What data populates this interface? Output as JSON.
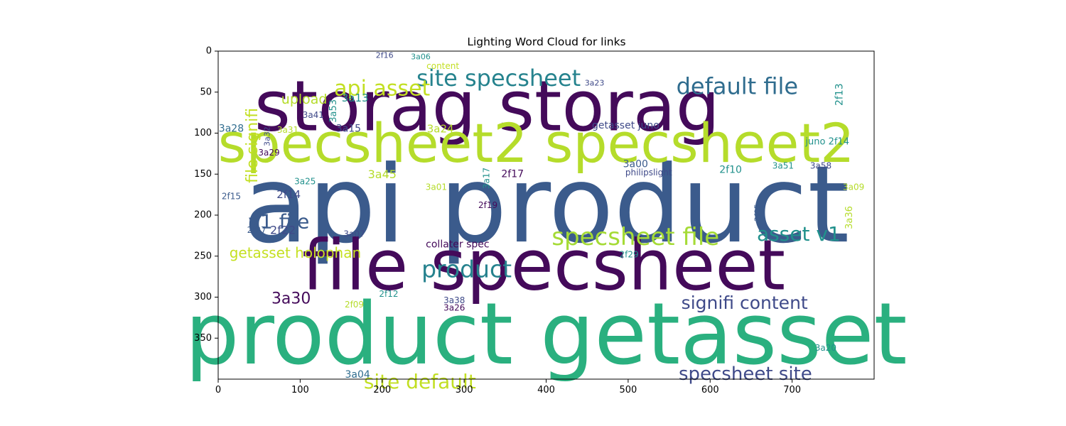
{
  "chart_data": {
    "type": "wordcloud",
    "title": "Lighting Word Cloud for links",
    "xlim": [
      0,
      800
    ],
    "ylim": [
      400,
      0
    ],
    "xticks": [
      0,
      100,
      200,
      300,
      400,
      500,
      600,
      700
    ],
    "yticks": [
      0,
      50,
      100,
      150,
      200,
      250,
      300,
      350
    ],
    "grid": false,
    "words": [
      {
        "text": "api product",
        "x": 400,
        "y": 188,
        "size": 150,
        "color": "#3b5b8c",
        "orient": "h"
      },
      {
        "text": "product getasset",
        "x": 400,
        "y": 346,
        "size": 120,
        "color": "#2ab07f",
        "orient": "h"
      },
      {
        "text": "file specsheet",
        "x": 397,
        "y": 262,
        "size": 98,
        "color": "#440a5a",
        "orient": "h"
      },
      {
        "text": "storag storag",
        "x": 328,
        "y": 68,
        "size": 98,
        "color": "#440a5a",
        "orient": "h"
      },
      {
        "text": "specsheet2 specsheet2",
        "x": 388,
        "y": 112,
        "size": 76,
        "color": "#b5dc2b",
        "orient": "h"
      },
      {
        "text": "site specsheet",
        "x": 342,
        "y": 33,
        "size": 32,
        "color": "#26838e",
        "orient": "h"
      },
      {
        "text": "default file",
        "x": 633,
        "y": 43,
        "size": 32,
        "color": "#2f6c8e",
        "orient": "h"
      },
      {
        "text": "api asset",
        "x": 200,
        "y": 46,
        "size": 30,
        "color": "#c2df23",
        "orient": "h"
      },
      {
        "text": "specsheet file",
        "x": 509,
        "y": 227,
        "size": 34,
        "color": "#a5db36",
        "orient": "h"
      },
      {
        "text": "product",
        "x": 303,
        "y": 266,
        "size": 33,
        "color": "#26828e",
        "orient": "h"
      },
      {
        "text": "v1 file",
        "x": 74,
        "y": 208,
        "size": 28,
        "color": "#3b5b8c",
        "orient": "h"
      },
      {
        "text": "asset v1",
        "x": 708,
        "y": 223,
        "size": 28,
        "color": "#21918c",
        "orient": "h"
      },
      {
        "text": "signifi content",
        "x": 642,
        "y": 307,
        "size": 25,
        "color": "#3f4a89",
        "orient": "h"
      },
      {
        "text": "specsheet site",
        "x": 643,
        "y": 394,
        "size": 26,
        "color": "#3f4a89",
        "orient": "h"
      },
      {
        "text": "site default",
        "x": 246,
        "y": 403,
        "size": 28,
        "color": "#c2df23",
        "orient": "h"
      },
      {
        "text": "getasset holophan",
        "x": 94,
        "y": 246,
        "size": 20,
        "color": "#c5e021",
        "orient": "h"
      },
      {
        "text": "3a30",
        "x": 89,
        "y": 302,
        "size": 22,
        "color": "#440a5a",
        "orient": "h"
      },
      {
        "text": "file signifi",
        "x": 42,
        "y": 115,
        "size": 22,
        "color": "#c2df23",
        "orient": "v"
      },
      {
        "text": "upload",
        "x": 105,
        "y": 59,
        "size": 19,
        "color": "#b5dc2b",
        "orient": "h"
      },
      {
        "text": "3a13",
        "x": 167,
        "y": 57,
        "size": 15,
        "color": "#21918c",
        "orient": "h"
      },
      {
        "text": "3a53",
        "x": 141,
        "y": 73,
        "size": 13,
        "color": "#21918c",
        "orient": "v"
      },
      {
        "text": "3a41",
        "x": 116,
        "y": 78,
        "size": 12,
        "color": "#3f4a89",
        "orient": "h"
      },
      {
        "text": "3a28",
        "x": 16,
        "y": 95,
        "size": 14,
        "color": "#2f6c8e",
        "orient": "h"
      },
      {
        "text": "3a31",
        "x": 85,
        "y": 96,
        "size": 12,
        "color": "#b5dc2b",
        "orient": "h"
      },
      {
        "text": "3a32",
        "x": 60,
        "y": 104,
        "size": 11,
        "color": "#3f4a89",
        "orient": "v"
      },
      {
        "text": "3a15",
        "x": 159,
        "y": 95,
        "size": 14,
        "color": "#3f4a89",
        "orient": "h"
      },
      {
        "text": "3a24",
        "x": 271,
        "y": 95,
        "size": 15,
        "color": "#b5dc2b",
        "orient": "h"
      },
      {
        "text": "3a29",
        "x": 62,
        "y": 124,
        "size": 12,
        "color": "#440a5a",
        "orient": "h"
      },
      {
        "text": "2f16",
        "x": 203,
        "y": 5,
        "size": 11,
        "color": "#3f4a89",
        "orient": "h"
      },
      {
        "text": "3a06",
        "x": 247,
        "y": 7,
        "size": 11,
        "color": "#21918c",
        "orient": "h"
      },
      {
        "text": "content",
        "x": 274,
        "y": 18,
        "size": 12,
        "color": "#c2df23",
        "orient": "h"
      },
      {
        "text": "3a23",
        "x": 459,
        "y": 39,
        "size": 11,
        "color": "#3f4a89",
        "orient": "h"
      },
      {
        "text": "2f13",
        "x": 758,
        "y": 53,
        "size": 14,
        "color": "#21918c",
        "orient": "v"
      },
      {
        "text": "getasset juno",
        "x": 497,
        "y": 91,
        "size": 14,
        "color": "#3f4a89",
        "orient": "h"
      },
      {
        "text": "juno 2f14",
        "x": 743,
        "y": 111,
        "size": 13,
        "color": "#21918c",
        "orient": "h"
      },
      {
        "text": "3a00",
        "x": 509,
        "y": 138,
        "size": 14,
        "color": "#3b5b8c",
        "orient": "h"
      },
      {
        "text": "philipslight",
        "x": 525,
        "y": 148,
        "size": 12,
        "color": "#3f4a89",
        "orient": "h"
      },
      {
        "text": "2f10",
        "x": 625,
        "y": 145,
        "size": 14,
        "color": "#21918c",
        "orient": "h"
      },
      {
        "text": "3a51",
        "x": 689,
        "y": 140,
        "size": 12,
        "color": "#21918c",
        "orient": "h"
      },
      {
        "text": "3a58",
        "x": 735,
        "y": 140,
        "size": 12,
        "color": "#3f4a89",
        "orient": "h"
      },
      {
        "text": "3a09",
        "x": 775,
        "y": 166,
        "size": 12,
        "color": "#b5dc2b",
        "orient": "h"
      },
      {
        "text": "3a45",
        "x": 200,
        "y": 150,
        "size": 16,
        "color": "#b5dc2b",
        "orient": "h"
      },
      {
        "text": "3a17",
        "x": 327,
        "y": 155,
        "size": 12,
        "color": "#21918c",
        "orient": "v"
      },
      {
        "text": "2f17",
        "x": 359,
        "y": 150,
        "size": 14,
        "color": "#440a5a",
        "orient": "h"
      },
      {
        "text": "3a25",
        "x": 106,
        "y": 159,
        "size": 12,
        "color": "#21918c",
        "orient": "h"
      },
      {
        "text": "3a01",
        "x": 266,
        "y": 166,
        "size": 12,
        "color": "#b5dc2b",
        "orient": "h"
      },
      {
        "text": "2f15",
        "x": 16,
        "y": 177,
        "size": 12,
        "color": "#3b5b8c",
        "orient": "h"
      },
      {
        "text": "2f14",
        "x": 86,
        "y": 175,
        "size": 15,
        "color": "#3f4a89",
        "orient": "h"
      },
      {
        "text": "2f19",
        "x": 329,
        "y": 188,
        "size": 12,
        "color": "#440a5a",
        "orient": "h"
      },
      {
        "text": "2f05",
        "x": 658,
        "y": 197,
        "size": 11,
        "color": "#3b5b8c",
        "orient": "v"
      },
      {
        "text": "3a36",
        "x": 770,
        "y": 203,
        "size": 13,
        "color": "#b5dc2b",
        "orient": "v"
      },
      {
        "text": "2f27",
        "x": 47,
        "y": 218,
        "size": 12,
        "color": "#3b5b8c",
        "orient": "h"
      },
      {
        "text": "2f22",
        "x": 79,
        "y": 218,
        "size": 16,
        "color": "#3f4a89",
        "orient": "h"
      },
      {
        "text": "3a07",
        "x": 166,
        "y": 223,
        "size": 12,
        "color": "#3f4a89",
        "orient": "h"
      },
      {
        "text": "collater spec",
        "x": 292,
        "y": 236,
        "size": 14,
        "color": "#440a5a",
        "orient": "h"
      },
      {
        "text": "2f29",
        "x": 501,
        "y": 248,
        "size": 12,
        "color": "#21918c",
        "orient": "h"
      },
      {
        "text": "2f12",
        "x": 208,
        "y": 296,
        "size": 12,
        "color": "#21918c",
        "orient": "h"
      },
      {
        "text": "2f09",
        "x": 166,
        "y": 309,
        "size": 12,
        "color": "#b5dc2b",
        "orient": "h"
      },
      {
        "text": "3a38",
        "x": 288,
        "y": 304,
        "size": 12,
        "color": "#3f4a89",
        "orient": "h"
      },
      {
        "text": "3a26",
        "x": 288,
        "y": 313,
        "size": 12,
        "color": "#440a5a",
        "orient": "h"
      },
      {
        "text": "3a20",
        "x": 741,
        "y": 362,
        "size": 12,
        "color": "#21918c",
        "orient": "h"
      },
      {
        "text": "3a04",
        "x": 170,
        "y": 395,
        "size": 14,
        "color": "#2f6c8e",
        "orient": "h"
      }
    ]
  }
}
